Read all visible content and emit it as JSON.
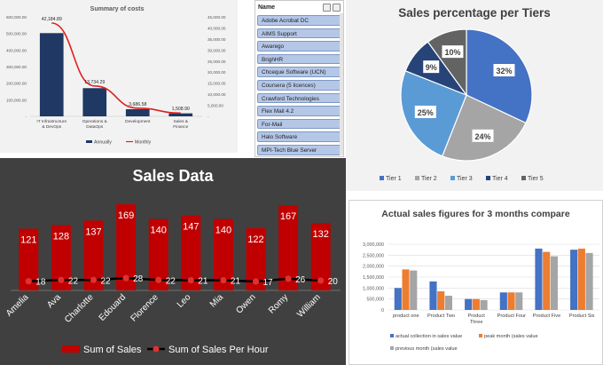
{
  "costs": {
    "title": "Summary of costs",
    "left_ticks": [
      "600,000.00",
      "500,000.00",
      "400,000.00",
      "300,000.00",
      "200,000.00",
      "100,000.00",
      "-"
    ],
    "right_ticks": [
      "45,000.00",
      "40,000.00",
      "35,000.00",
      "30,000.00",
      "25,000.00",
      "20,000.00",
      "15,000.00",
      "10,000.00",
      "5,000.00",
      "-"
    ],
    "legend_bar": "Annually",
    "legend_line": "Monthly",
    "bar_color": "#1f3864",
    "line_color": "#e02020"
  },
  "slicer": {
    "header": "Name",
    "items": [
      "Adobe Acrobat DC",
      "AIMS Support",
      "Awarego",
      "BrighHR",
      "Chceque Software (UCN)",
      "Coursera (5 licences)",
      "Crawford Technologies",
      "Flex Mail 4.2",
      "For-Mail",
      "Halo Software",
      "MPI-Tech Blue Server"
    ]
  },
  "pie": {
    "title": "Sales percentage per Tiers",
    "legend_labels": [
      "Tier 1",
      "Tier 2",
      "Tier 3",
      "Tier 4",
      "Tier 5"
    ],
    "legend_colors": [
      "#4472c4",
      "#a5a5a5",
      "#5b9bd5",
      "#264478",
      "#636363"
    ]
  },
  "sales": {
    "title": "Sales Data",
    "legend_bar": "Sum of Sales",
    "legend_line": "Sum of Sales Per Hour",
    "bar_color": "#c00000",
    "line_color": "#000000"
  },
  "actual": {
    "title": "Actual sales figures for 3 months compare",
    "y_ticks": [
      "3,000,000",
      "2,500,000",
      "2,000,000",
      "1,500,000",
      "1,000,000",
      "500,000",
      "0"
    ],
    "legend": [
      "actual collection in sales value",
      "peak month (sales value",
      "previous month (sales value"
    ],
    "colors": [
      "#4472c4",
      "#ed7d31",
      "#a5a5a5"
    ]
  },
  "chart_data": [
    {
      "type": "bar",
      "title": "Summary of costs",
      "categories": [
        "IT Infrastructure & DevOps",
        "Operations & DataOps",
        "Development",
        "Sales & Finance"
      ],
      "series": [
        {
          "name": "Annually",
          "values": [
            502000,
            170000,
            43000,
            18000
          ]
        },
        {
          "name": "Monthly",
          "values": [
            42184.89,
            13734.29,
            3686.58,
            1508.9
          ]
        }
      ],
      "data_labels": [
        "42,184.89",
        "13,734.29",
        "3,686.58",
        "1,508.90"
      ],
      "ylim": [
        0,
        600000
      ],
      "y2lim": [
        0,
        45000
      ]
    },
    {
      "type": "pie",
      "title": "Sales percentage per Tiers",
      "categories": [
        "Tier 1",
        "Tier 2",
        "Tier 3",
        "Tier 4",
        "Tier 5"
      ],
      "values": [
        32,
        24,
        25,
        9,
        10
      ],
      "labels": [
        "32%",
        "24%",
        "25%",
        "9%",
        "10%"
      ]
    },
    {
      "type": "bar",
      "title": "Sales Data",
      "categories": [
        "Amelia",
        "Ava",
        "Charlotte",
        "Edouard",
        "Florence",
        "Leo",
        "Mia",
        "Owen",
        "Romy",
        "William"
      ],
      "series": [
        {
          "name": "Sum of Sales",
          "values": [
            121,
            128,
            137,
            169,
            140,
            147,
            140,
            122,
            167,
            132
          ]
        },
        {
          "name": "Sum of Sales Per Hour",
          "values": [
            18,
            22,
            22,
            28,
            22,
            21,
            21,
            17,
            26,
            20
          ]
        }
      ],
      "ylim": [
        0,
        180
      ]
    },
    {
      "type": "bar",
      "title": "Actual sales figures for 3 months compare",
      "categories": [
        "product one",
        "Product Two",
        "Product Three",
        "Product Four",
        "Product Five",
        "Product Six"
      ],
      "series": [
        {
          "name": "actual collection in sales value",
          "values": [
            1000000,
            1300000,
            500000,
            800000,
            2800000,
            2750000
          ]
        },
        {
          "name": "peak month (sales value",
          "values": [
            1850000,
            850000,
            500000,
            800000,
            2650000,
            2800000
          ]
        },
        {
          "name": "previous month (sales value",
          "values": [
            1800000,
            650000,
            450000,
            800000,
            2450000,
            2600000
          ]
        }
      ],
      "ylim": [
        0,
        3000000
      ]
    }
  ]
}
